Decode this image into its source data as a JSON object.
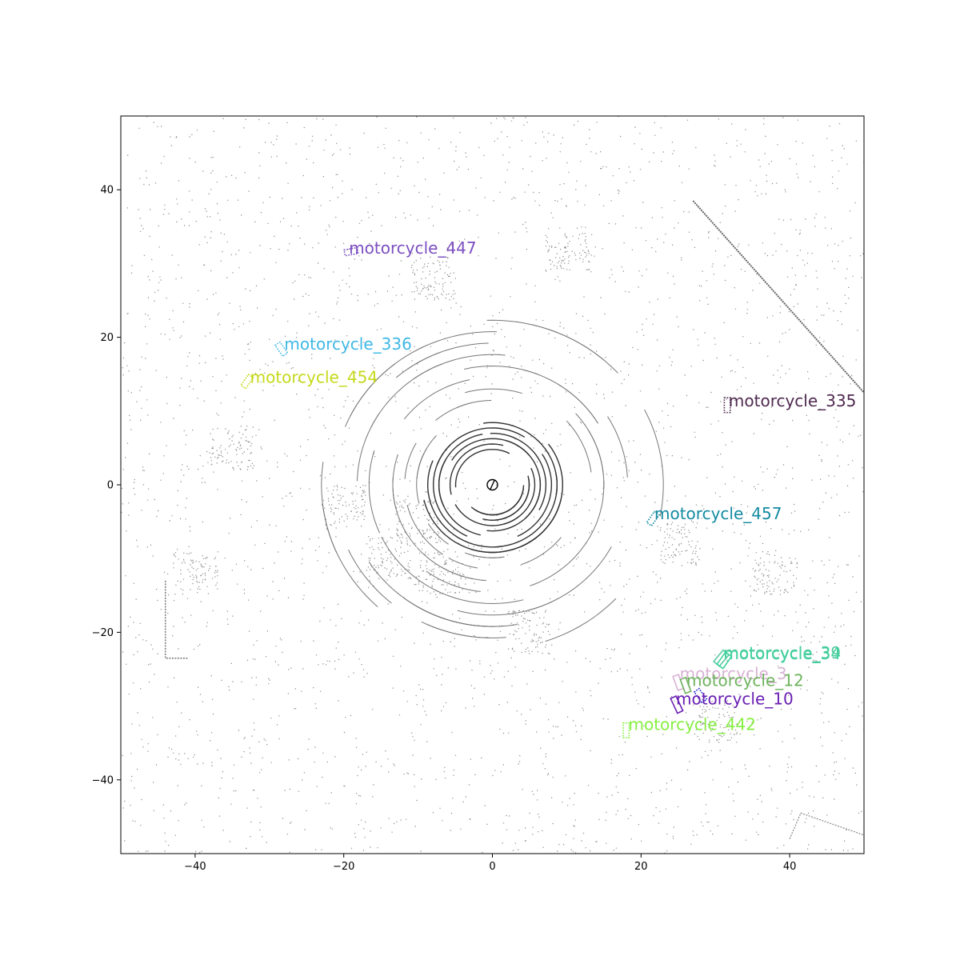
{
  "chart_data": {
    "type": "scatter",
    "title": "",
    "xlabel": "",
    "ylabel": "",
    "xlim": [
      -50,
      50
    ],
    "ylim": [
      -50,
      50
    ],
    "x_ticks": [
      -40,
      -20,
      0,
      20,
      40
    ],
    "y_ticks": [
      -40,
      -20,
      0,
      20,
      40
    ],
    "grid": false,
    "ego_marker": {
      "x": 0,
      "y": 0
    },
    "objects": [
      {
        "label": "motorcycle_447",
        "color": "#7b4fc0",
        "x": -19.0,
        "y": 31.6,
        "w": 1.8,
        "l": 0.8,
        "angle": -10,
        "style": "dotted",
        "label_x": -19.3,
        "label_y": 32.1
      },
      {
        "label": "motorcycle_336",
        "color": "#3fb8e6",
        "x": -28.4,
        "y": 18.4,
        "w": 0.8,
        "l": 1.8,
        "angle": -35,
        "style": "dotted",
        "label_x": -28.0,
        "label_y": 19.1
      },
      {
        "label": "motorcycle_454",
        "color": "#c5d91a",
        "x": -33.0,
        "y": 14.0,
        "w": 0.8,
        "l": 1.8,
        "angle": 35,
        "style": "dotted",
        "label_x": -32.6,
        "label_y": 14.6
      },
      {
        "label": "motorcycle_335",
        "color": "#4f2a4f",
        "x": 31.6,
        "y": 10.8,
        "w": 0.8,
        "l": 2.0,
        "angle": 0,
        "style": "dotted",
        "label_x": 31.8,
        "label_y": 11.4
      },
      {
        "label": "motorcycle_457",
        "color": "#138ba1",
        "x": 21.6,
        "y": -4.6,
        "w": 0.8,
        "l": 1.8,
        "angle": 35,
        "style": "dotted",
        "label_x": 21.8,
        "label_y": -3.9
      },
      {
        "label": "motorcycle_39",
        "color": "#5ac9a3",
        "x": 30.8,
        "y": -23.5,
        "w": 1.0,
        "l": 2.0,
        "angle": 40,
        "style": "solid",
        "label_x": 31.1,
        "label_y": -22.8
      },
      {
        "label": "motorcycle_34",
        "color": "#3fd19c",
        "x": 31.2,
        "y": -23.8,
        "w": 1.0,
        "l": 2.0,
        "angle": 35,
        "style": "solid",
        "label_x": 31.1,
        "label_y": -22.9
      },
      {
        "label": "motorcycle_3",
        "color": "#d9b3d6",
        "x": 25.0,
        "y": -26.8,
        "w": 0.8,
        "l": 2.0,
        "angle": -20,
        "style": "solid",
        "label_x": 25.2,
        "label_y": -25.6
      },
      {
        "label": "motorcycle_12",
        "color": "#6db35c",
        "x": 26.0,
        "y": -27.2,
        "w": 0.8,
        "l": 2.0,
        "angle": -20,
        "style": "solid",
        "label_x": 26.1,
        "label_y": -26.5
      },
      {
        "label": "motorcycle_10",
        "color": "#6a1fb3",
        "x": 24.8,
        "y": -29.8,
        "w": 0.8,
        "l": 2.2,
        "angle": -25,
        "style": "solid",
        "label_x": 24.7,
        "label_y": -29.0
      },
      {
        "label": "",
        "color": "#1f1fd9",
        "x": 28.0,
        "y": -28.6,
        "w": 0.8,
        "l": 1.8,
        "angle": -35,
        "style": "dotted",
        "label_x": 28.0,
        "label_y": -28.6
      },
      {
        "label": "motorcycle_442",
        "color": "#86f042",
        "x": 18.0,
        "y": -33.3,
        "w": 0.8,
        "l": 2.0,
        "angle": 0,
        "style": "dotted",
        "label_x": 18.3,
        "label_y": -32.5
      }
    ]
  }
}
